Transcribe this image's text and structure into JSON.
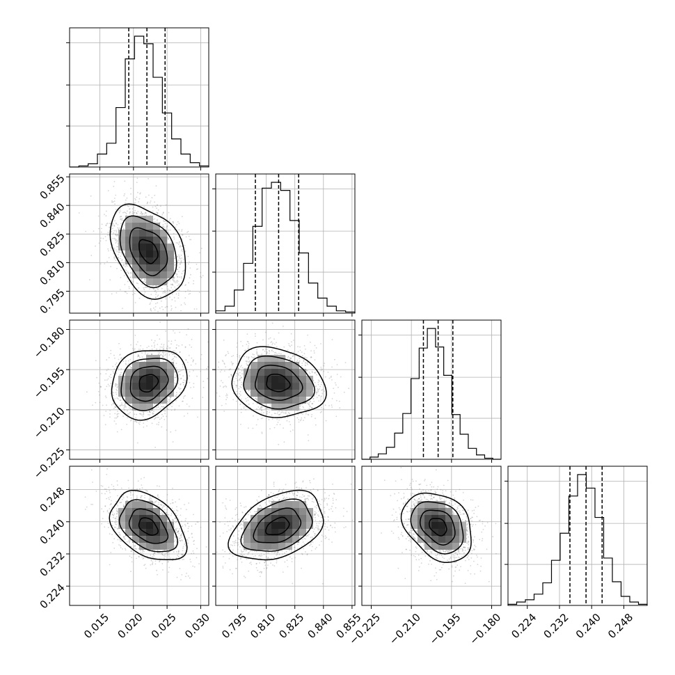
{
  "chart_data": {
    "type": "corner",
    "grid": true,
    "parameters": [
      {
        "range": [
          0.0105,
          0.0312
        ],
        "ticks": [
          0.015,
          0.02,
          0.025,
          0.03
        ],
        "tick_labels": [
          "0.015",
          "0.020",
          "0.025",
          "0.030"
        ]
      },
      {
        "range": [
          0.7835,
          0.8565
        ],
        "ticks": [
          0.795,
          0.81,
          0.825,
          0.84,
          0.855
        ],
        "tick_labels": [
          "0.795",
          "0.810",
          "0.825",
          "0.840",
          "0.855"
        ]
      },
      {
        "range": [
          -0.2285,
          -0.1765
        ],
        "ticks": [
          -0.225,
          -0.21,
          -0.195,
          -0.18
        ],
        "tick_labels": [
          "−0.225",
          "−0.210",
          "−0.195",
          "−0.180"
        ]
      },
      {
        "range": [
          0.2192,
          0.2538
        ],
        "ticks": [
          0.224,
          0.232,
          0.24,
          0.248
        ],
        "tick_labels": [
          "0.224",
          "0.232",
          "0.240",
          "0.248"
        ]
      }
    ],
    "quantiles": [
      [
        0.0193,
        0.022,
        0.0247
      ],
      [
        0.8043,
        0.8165,
        0.827
      ],
      [
        -0.2055,
        -0.2,
        -0.1945
      ],
      [
        0.2346,
        0.2386,
        0.2426
      ]
    ],
    "histograms": [
      {
        "counts": [
          0,
          1,
          3,
          12,
          22,
          55,
          100,
          121,
          114,
          83,
          50,
          26,
          12,
          4,
          1
        ]
      },
      {
        "counts": [
          2,
          6,
          20,
          43,
          75,
          108,
          113,
          106,
          80,
          52,
          26,
          13,
          6,
          2,
          1
        ]
      },
      {
        "counts": [
          0,
          2,
          5,
          11,
          24,
          42,
          74,
          102,
          120,
          103,
          77,
          41,
          23,
          10,
          4,
          1,
          0
        ]
      },
      {
        "counts": [
          1,
          3,
          5,
          10,
          20,
          40,
          64,
          97,
          116,
          104,
          78,
          42,
          21,
          8,
          3,
          1
        ]
      }
    ],
    "pairs": [
      {
        "x": 0,
        "y": 1,
        "center": [
          0.0222,
          0.816
        ],
        "sigma": [
          0.0028,
          0.0122
        ],
        "corr": -0.35
      },
      {
        "x": 0,
        "y": 2,
        "center": [
          0.0222,
          -0.2
        ],
        "sigma": [
          0.0028,
          0.0065
        ],
        "corr": 0.2
      },
      {
        "x": 1,
        "y": 2,
        "center": [
          0.816,
          -0.2
        ],
        "sigma": [
          0.0122,
          0.0065
        ],
        "corr": -0.15
      },
      {
        "x": 0,
        "y": 3,
        "center": [
          0.0222,
          0.2388
        ],
        "sigma": [
          0.0028,
          0.0043
        ],
        "corr": -0.4
      },
      {
        "x": 1,
        "y": 3,
        "center": [
          0.816,
          0.2388
        ],
        "sigma": [
          0.0122,
          0.0043
        ],
        "corr": 0.38
      },
      {
        "x": 2,
        "y": 3,
        "center": [
          -0.2,
          0.2388
        ],
        "sigma": [
          0.0065,
          0.0043
        ],
        "corr": -0.3
      }
    ],
    "contour_levels_sigma": [
      0.5,
      1.0,
      1.5,
      2.0
    ],
    "colors": {
      "contour": "#000000",
      "points": "#888888",
      "grid": "#b0b0b0",
      "quantile_line": "#000000"
    }
  }
}
